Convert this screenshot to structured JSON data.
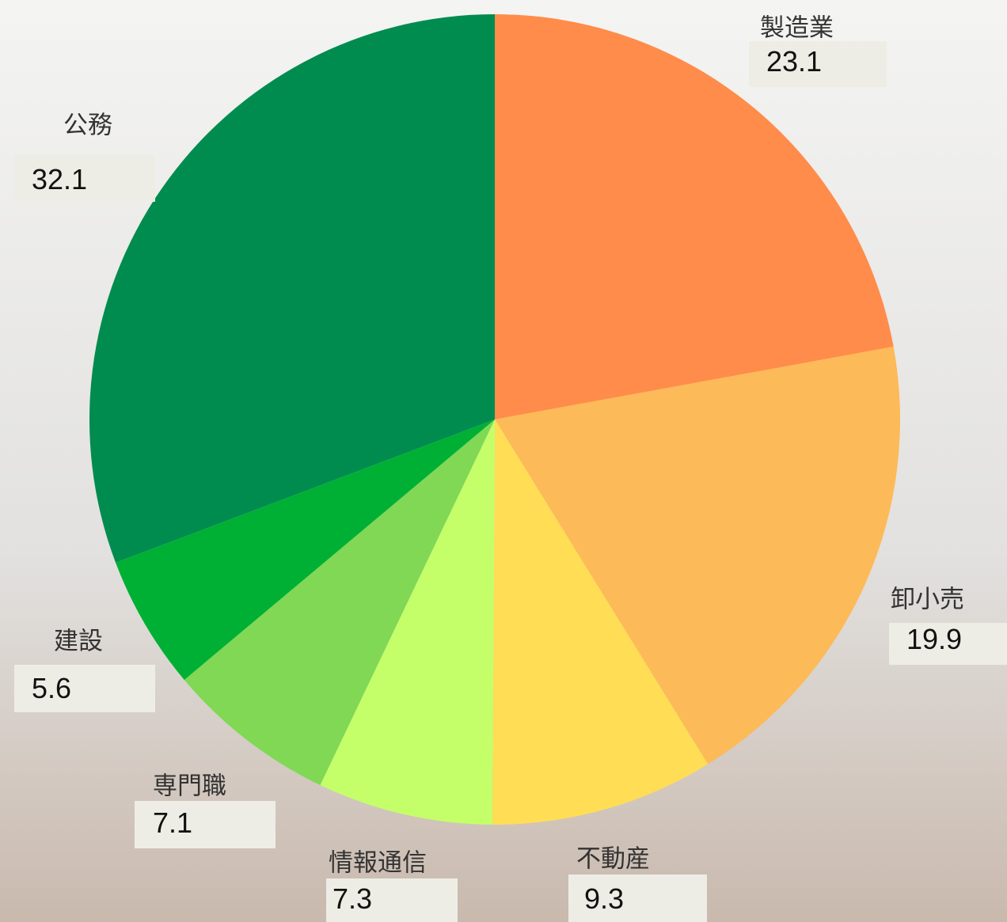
{
  "chart_data": {
    "type": "pie",
    "categories": [
      "製造業",
      "卸小売",
      "不動産",
      "情報通信",
      "専門職",
      "建設",
      "公務"
    ],
    "values": [
      23.1,
      19.9,
      9.3,
      7.3,
      7.1,
      5.6,
      32.1
    ],
    "colors": [
      "#ff8c4a",
      "#fdba58",
      "#ffdd55",
      "#c4ff6a",
      "#80d855",
      "#00b035",
      "#008c4e"
    ]
  }
}
